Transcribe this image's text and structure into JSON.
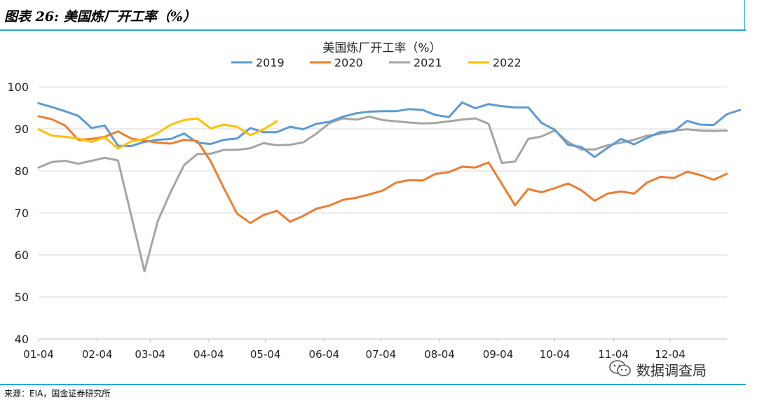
{
  "figure": {
    "label": "图表 26:",
    "title": "美国炼厂开工率（%）",
    "source": "来源：EIA，国金证券研究所",
    "watermark": "数据调查局"
  },
  "chart_data": {
    "type": "line",
    "title": "美国炼厂开工率（%）",
    "xlabel": "",
    "ylabel": "",
    "ylim": [
      40,
      100
    ],
    "yticks": [
      40,
      50,
      60,
      70,
      80,
      90,
      100
    ],
    "xlim": [
      1,
      53
    ],
    "x_ticks": [
      {
        "label": "01-04",
        "week": 1
      },
      {
        "label": "02-04",
        "week": 5.43
      },
      {
        "label": "03-04",
        "week": 9.43
      },
      {
        "label": "04-04",
        "week": 13.86
      },
      {
        "label": "05-04",
        "week": 18.14
      },
      {
        "label": "06-04",
        "week": 22.57
      },
      {
        "label": "07-04",
        "week": 26.86
      },
      {
        "label": "08-04",
        "week": 31.29
      },
      {
        "label": "09-04",
        "week": 35.71
      },
      {
        "label": "10-04",
        "week": 40.0
      },
      {
        "label": "11-04",
        "week": 44.43
      },
      {
        "label": "12-04",
        "week": 48.71
      }
    ],
    "legend_position": "top",
    "grid": "horizontal",
    "series": [
      {
        "name": "2019",
        "color": "#5B9BD5",
        "values": [
          96.1,
          95.2,
          94.2,
          93.1,
          90.2,
          90.8,
          86.0,
          85.9,
          86.9,
          87.4,
          87.6,
          88.9,
          86.7,
          86.4,
          87.4,
          87.7,
          90.2,
          89.2,
          89.2,
          90.5,
          89.9,
          91.2,
          91.7,
          92.9,
          93.7,
          94.1,
          94.2,
          94.2,
          94.7,
          94.5,
          93.3,
          92.8,
          96.3,
          94.9,
          95.9,
          95.4,
          95.1,
          95.1,
          91.4,
          89.8,
          86.2,
          85.7,
          83.3,
          85.5,
          87.6,
          86.3,
          87.9,
          89.3,
          89.4,
          91.9,
          91.0,
          90.9,
          93.5,
          94.5
        ]
      },
      {
        "name": "2020",
        "color": "#ED7D31",
        "values": [
          93.0,
          92.3,
          90.8,
          87.4,
          87.6,
          88.1,
          89.4,
          87.7,
          87.2,
          86.7,
          86.5,
          87.4,
          87.1,
          82.3,
          75.9,
          69.8,
          67.6,
          69.5,
          70.5,
          67.9,
          69.3,
          71.0,
          71.8,
          73.1,
          73.6,
          74.4,
          75.3,
          77.2,
          77.8,
          77.7,
          79.3,
          79.7,
          81.0,
          80.8,
          82.0,
          76.9,
          71.8,
          75.7,
          74.9,
          75.9,
          77.0,
          75.4,
          72.9,
          74.6,
          75.1,
          74.6,
          77.3,
          78.6,
          78.3,
          79.8,
          79.0,
          77.9,
          79.3
        ]
      },
      {
        "name": "2021",
        "color": "#A5A5A5",
        "values": [
          80.8,
          82.1,
          82.4,
          81.7,
          82.4,
          83.1,
          82.5,
          69.4,
          56.1,
          68.0,
          75.1,
          81.4,
          84.0,
          84.1,
          85.0,
          85.0,
          85.4,
          86.6,
          86.1,
          86.2,
          86.8,
          88.9,
          91.4,
          92.5,
          92.2,
          92.9,
          92.1,
          91.8,
          91.5,
          91.3,
          91.4,
          91.8,
          92.2,
          92.5,
          91.2,
          81.9,
          82.2,
          87.6,
          88.2,
          89.6,
          86.9,
          85.1,
          85.1,
          86.1,
          86.7,
          87.4,
          88.4,
          88.8,
          89.6,
          89.9,
          89.6,
          89.5,
          89.6
        ]
      },
      {
        "name": "2022",
        "color": "#FFC000",
        "values": [
          89.9,
          88.4,
          88.1,
          87.7,
          86.9,
          88.0,
          85.3,
          87.0,
          87.6,
          89.0,
          91.0,
          92.1,
          92.5,
          90.1,
          91.0,
          90.5,
          88.5,
          89.9,
          91.8
        ]
      }
    ]
  }
}
